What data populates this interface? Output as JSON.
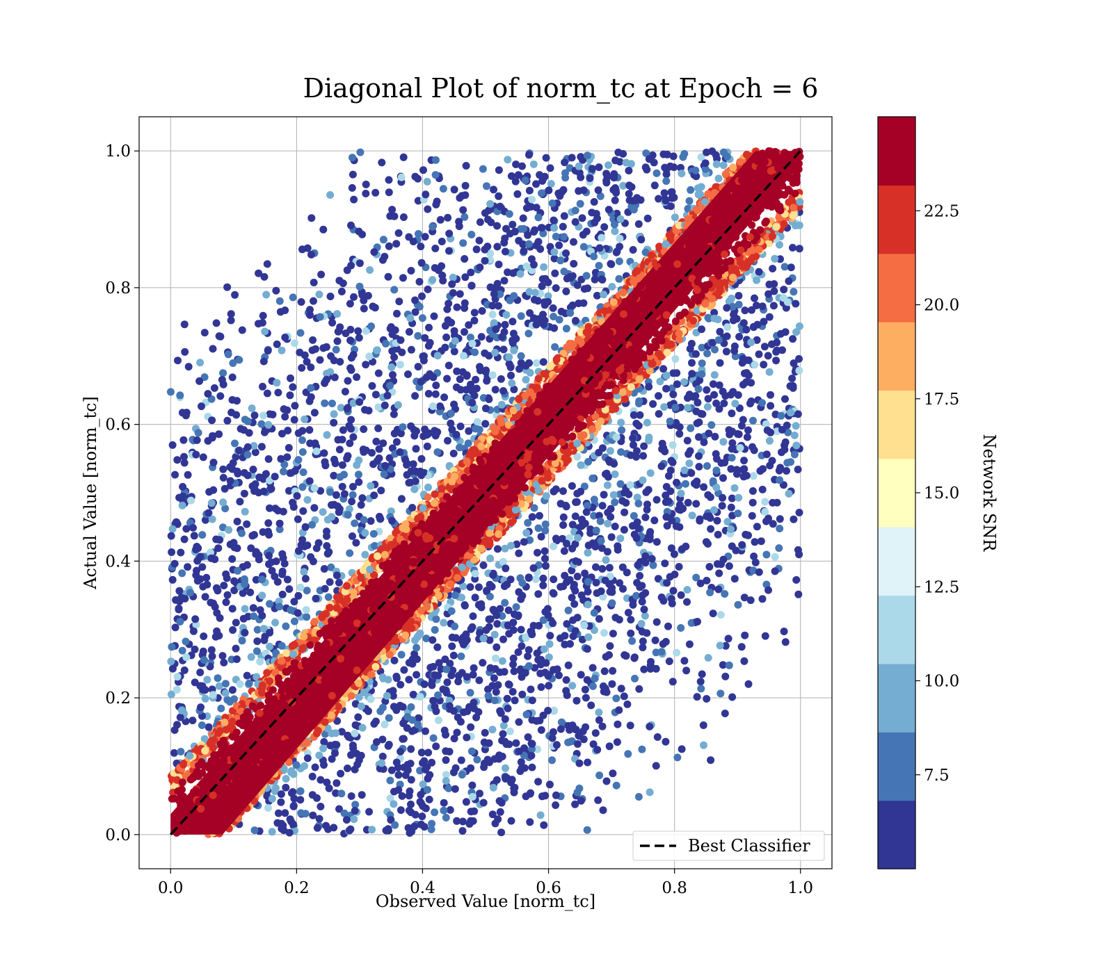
{
  "chart_data": {
    "type": "scatter",
    "title": "Diagonal Plot of norm_tc at Epoch = 6",
    "xlabel": "Observed Value [norm_tc]",
    "ylabel": "Actual Value [norm_tc]",
    "xlim": [
      -0.05,
      1.05
    ],
    "ylim": [
      -0.05,
      1.05
    ],
    "xticks": [
      "0.0",
      "0.2",
      "0.4",
      "0.6",
      "0.8",
      "1.0"
    ],
    "yticks": [
      "0.0",
      "0.2",
      "0.4",
      "0.6",
      "0.8",
      "1.0"
    ],
    "xtick_values": [
      0.0,
      0.2,
      0.4,
      0.6,
      0.8,
      1.0
    ],
    "ytick_values": [
      0.0,
      0.2,
      0.4,
      0.6,
      0.8,
      1.0
    ],
    "grid": true,
    "reference_line": {
      "name": "Best Classifier",
      "x": [
        0,
        1
      ],
      "y": [
        0,
        1
      ],
      "style": "dashed",
      "color": "#000000"
    },
    "legend": {
      "placement": "bottom-right",
      "entries": [
        "Best Classifier"
      ]
    },
    "colorbar": {
      "label": "Network SNR",
      "range": [
        5.0,
        25.0
      ],
      "ticks": [
        "7.5",
        "10.0",
        "12.5",
        "15.0",
        "17.5",
        "20.0",
        "22.5"
      ],
      "tick_values": [
        7.5,
        10.0,
        12.5,
        15.0,
        17.5,
        20.0,
        22.5
      ],
      "colors": [
        "#313695",
        "#4575b4",
        "#74add1",
        "#abd9e9",
        "#e0f3f8",
        "#ffffbf",
        "#fee090",
        "#fdae61",
        "#f46d43",
        "#d73027",
        "#a50026"
      ]
    },
    "points_note_hidden": false,
    "scatter_model": {
      "core_halfwidth": 0.055,
      "edge_width": 0.03,
      "scatter_count": 5200,
      "marker_color_high": "#a50026"
    }
  }
}
